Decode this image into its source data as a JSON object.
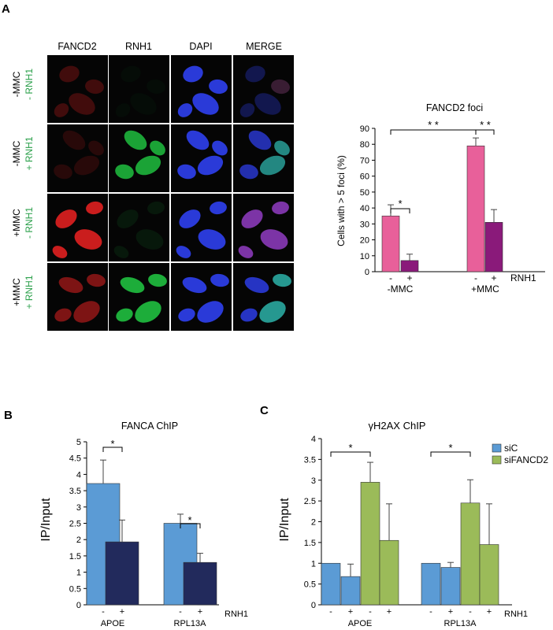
{
  "panel_labels": [
    "A",
    "B",
    "C"
  ],
  "micrograph": {
    "columns": [
      "FANCD2",
      "RNH1",
      "DAPI",
      "MERGE"
    ],
    "rows": [
      {
        "treatment": "-MMC",
        "rnh1": "- RNH1"
      },
      {
        "treatment": "-MMC",
        "rnh1": "+ RNH1"
      },
      {
        "treatment": "+MMC",
        "rnh1": "- RNH1"
      },
      {
        "treatment": "+MMC",
        "rnh1": "+ RNH1"
      }
    ],
    "colors": {
      "fancd2": "#e02020",
      "rnh1": "#20c040",
      "dapi": "#2a3ad8",
      "merge": "#8a3ab8",
      "label_green": "#2aa04a"
    }
  },
  "chart_data": [
    {
      "type": "bar",
      "title": "FANCD2 foci",
      "ylabel": "Cells with > 5 foci (%)",
      "ylim": [
        0,
        90
      ],
      "yticks": [
        0,
        10,
        20,
        30,
        40,
        50,
        60,
        70,
        80,
        90
      ],
      "groups": [
        "-MMC",
        "+MMC"
      ],
      "sign_labels": [
        "-",
        "+",
        "-",
        "+"
      ],
      "factor_label": "RNH1",
      "bars": [
        {
          "group": "-MMC",
          "rnh1": "-",
          "value": 35,
          "error": 7,
          "color": "#e8609a"
        },
        {
          "group": "-MMC",
          "rnh1": "+",
          "value": 7,
          "error": 4,
          "color": "#8a1a7a"
        },
        {
          "group": "+MMC",
          "rnh1": "-",
          "value": 79,
          "error": 5,
          "color": "#e8609a"
        },
        {
          "group": "+MMC",
          "rnh1": "+",
          "value": 31,
          "error": 8,
          "color": "#8a1a7a"
        }
      ],
      "significance": [
        "*",
        "* *",
        "* *"
      ]
    },
    {
      "type": "bar",
      "title": "FANCA ChIP",
      "ylabel": "IP/Input",
      "ylim": [
        0,
        5
      ],
      "yticks": [
        "0",
        "0.5",
        "1",
        "1.5",
        "2",
        "2.5",
        "3",
        "3.5",
        "4",
        "4.5",
        "5"
      ],
      "groups": [
        "APOE",
        "RPL13A"
      ],
      "sign_labels": [
        "-",
        "+",
        "-",
        "+"
      ],
      "factor_label": "RNH1",
      "bars": [
        {
          "group": "APOE",
          "rnh1": "-",
          "value": 3.72,
          "error": 0.72,
          "color": "#5b9bd5"
        },
        {
          "group": "APOE",
          "rnh1": "+",
          "value": 1.93,
          "error": 0.67,
          "color": "#222a5c"
        },
        {
          "group": "RPL13A",
          "rnh1": "-",
          "value": 2.5,
          "error": 0.28,
          "color": "#5b9bd5"
        },
        {
          "group": "RPL13A",
          "rnh1": "+",
          "value": 1.3,
          "error": 0.28,
          "color": "#222a5c"
        }
      ],
      "significance": [
        "*",
        "*"
      ]
    },
    {
      "type": "bar",
      "title": "γH2AX  ChIP",
      "ylabel": "IP/Input",
      "ylim": [
        0,
        4
      ],
      "yticks": [
        "0",
        "0.5",
        "1",
        "1.5",
        "2",
        "2.5",
        "3",
        "3.5",
        "4"
      ],
      "groups": [
        "APOE",
        "RPL13A"
      ],
      "sign_labels": [
        "-",
        "+",
        "-",
        "+",
        "-",
        "+",
        "-",
        "+"
      ],
      "factor_label": "RNH1",
      "legend": [
        {
          "name": "siC",
          "color": "#5b9bd5"
        },
        {
          "name": "siFANCD2",
          "color": "#9bbb59"
        }
      ],
      "legend_position": "top-right",
      "bars": [
        {
          "group": "APOE",
          "series": "siC",
          "rnh1": "-",
          "value": 1.0,
          "error": 0
        },
        {
          "group": "APOE",
          "series": "siC",
          "rnh1": "+",
          "value": 0.68,
          "error": 0.3
        },
        {
          "group": "APOE",
          "series": "siFANCD2",
          "rnh1": "-",
          "value": 2.95,
          "error": 0.48
        },
        {
          "group": "APOE",
          "series": "siFANCD2",
          "rnh1": "+",
          "value": 1.55,
          "error": 0.88
        },
        {
          "group": "RPL13A",
          "series": "siC",
          "rnh1": "-",
          "value": 1.0,
          "error": 0
        },
        {
          "group": "RPL13A",
          "series": "siC",
          "rnh1": "+",
          "value": 0.9,
          "error": 0.12
        },
        {
          "group": "RPL13A",
          "series": "siFANCD2",
          "rnh1": "-",
          "value": 2.45,
          "error": 0.56
        },
        {
          "group": "RPL13A",
          "series": "siFANCD2",
          "rnh1": "+",
          "value": 1.45,
          "error": 0.98
        }
      ],
      "significance": [
        "*",
        "*"
      ]
    }
  ]
}
